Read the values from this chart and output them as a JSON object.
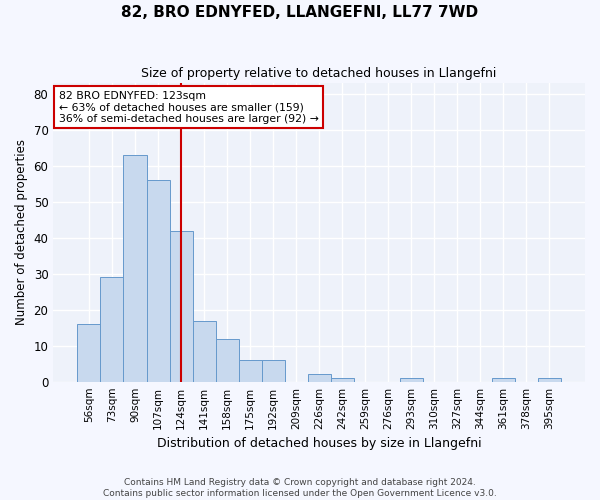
{
  "title": "82, BRO EDNYFED, LLANGEFNI, LL77 7WD",
  "subtitle": "Size of property relative to detached houses in Llangefni",
  "xlabel": "Distribution of detached houses by size in Llangefni",
  "ylabel": "Number of detached properties",
  "bar_color": "#c8d9ee",
  "bar_edge_color": "#6699cc",
  "background_color": "#eef2fa",
  "grid_color": "#ffffff",
  "categories": [
    "56sqm",
    "73sqm",
    "90sqm",
    "107sqm",
    "124sqm",
    "141sqm",
    "158sqm",
    "175sqm",
    "192sqm",
    "209sqm",
    "226sqm",
    "242sqm",
    "259sqm",
    "276sqm",
    "293sqm",
    "310sqm",
    "327sqm",
    "344sqm",
    "361sqm",
    "378sqm",
    "395sqm"
  ],
  "values": [
    16,
    29,
    63,
    56,
    42,
    17,
    12,
    6,
    6,
    0,
    2,
    1,
    0,
    0,
    1,
    0,
    0,
    0,
    1,
    0,
    1
  ],
  "ylim": [
    0,
    83
  ],
  "yticks": [
    0,
    10,
    20,
    30,
    40,
    50,
    60,
    70,
    80
  ],
  "vline_x": 4.0,
  "vline_color": "#cc0000",
  "annotation_lines": [
    "82 BRO EDNYFED: 123sqm",
    "← 63% of detached houses are smaller (159)",
    "36% of semi-detached houses are larger (92) →"
  ],
  "annotation_box_color": "#cc0000",
  "footer_line1": "Contains HM Land Registry data © Crown copyright and database right 2024.",
  "footer_line2": "Contains public sector information licensed under the Open Government Licence v3.0."
}
